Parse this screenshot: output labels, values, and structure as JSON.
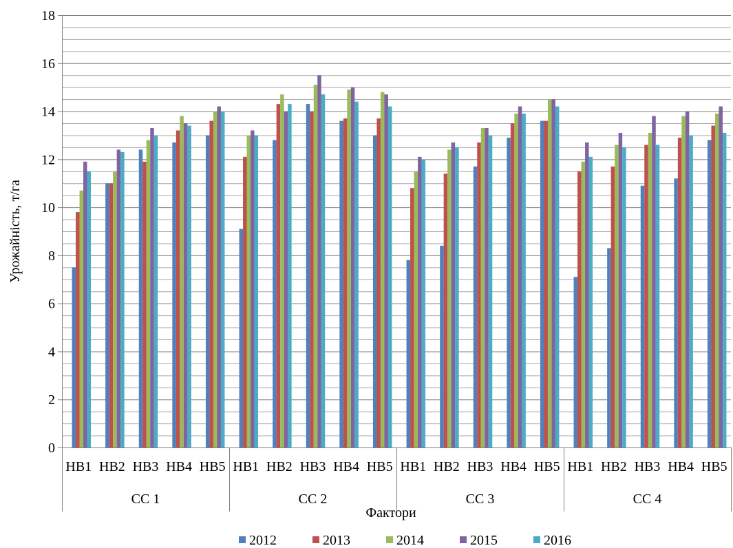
{
  "chart_data": {
    "type": "bar",
    "title": "",
    "xlabel": "Фактори",
    "ylabel": "Урожайність, т/га",
    "ylim": [
      0,
      18
    ],
    "y_major_ticks": [
      0,
      2,
      4,
      6,
      8,
      10,
      12,
      14,
      16,
      18
    ],
    "y_minor_step": 0.5,
    "grid": true,
    "legend_position": "bottom",
    "groups": [
      "СС 1",
      "СС 2",
      "СС 3",
      "СС 4"
    ],
    "subcategories": [
      "НВ1",
      "НВ2",
      "НВ3",
      "НВ4",
      "НВ5"
    ],
    "categories": [
      "СС 1 НВ1",
      "СС 1 НВ2",
      "СС 1 НВ3",
      "СС 1 НВ4",
      "СС 1 НВ5",
      "СС 2 НВ1",
      "СС 2 НВ2",
      "СС 2 НВ3",
      "СС 2 НВ4",
      "СС 2 НВ5",
      "СС 3 НВ1",
      "СС 3 НВ2",
      "СС 3 НВ3",
      "СС 3 НВ4",
      "СС 3 НВ5",
      "СС 4 НВ1",
      "СС 4 НВ2",
      "СС 4 НВ3",
      "СС 4 НВ4",
      "СС 4 НВ5"
    ],
    "series": [
      {
        "name": "2012",
        "color": "#4F81BD",
        "values": [
          7.5,
          11.0,
          12.4,
          12.7,
          13.0,
          9.1,
          12.8,
          14.3,
          13.6,
          13.0,
          7.8,
          8.4,
          11.7,
          12.9,
          13.6,
          7.1,
          8.3,
          10.9,
          11.2,
          12.8
        ]
      },
      {
        "name": "2013",
        "color": "#C0504D",
        "values": [
          9.8,
          11.0,
          11.9,
          13.2,
          13.6,
          12.1,
          14.3,
          14.0,
          13.7,
          13.7,
          10.8,
          11.4,
          12.7,
          13.5,
          13.6,
          11.5,
          11.7,
          12.6,
          12.9,
          13.4
        ]
      },
      {
        "name": "2014",
        "color": "#9BBB59",
        "values": [
          10.7,
          11.5,
          12.8,
          13.8,
          14.0,
          13.0,
          14.7,
          15.1,
          14.9,
          14.8,
          11.5,
          12.4,
          13.3,
          13.9,
          14.5,
          11.9,
          12.6,
          13.1,
          13.8,
          13.9
        ]
      },
      {
        "name": "2015",
        "color": "#8064A2",
        "values": [
          11.9,
          12.4,
          13.3,
          13.5,
          14.2,
          13.2,
          14.0,
          15.5,
          15.0,
          14.7,
          12.1,
          12.7,
          13.3,
          14.2,
          14.5,
          12.7,
          13.1,
          13.8,
          14.0,
          14.2
        ]
      },
      {
        "name": "2016",
        "color": "#4BACC6",
        "values": [
          11.5,
          12.3,
          13.0,
          13.4,
          14.0,
          13.0,
          14.3,
          14.7,
          14.4,
          14.2,
          12.0,
          12.5,
          13.0,
          13.9,
          14.2,
          12.1,
          12.5,
          12.6,
          13.0,
          13.1
        ]
      }
    ]
  }
}
